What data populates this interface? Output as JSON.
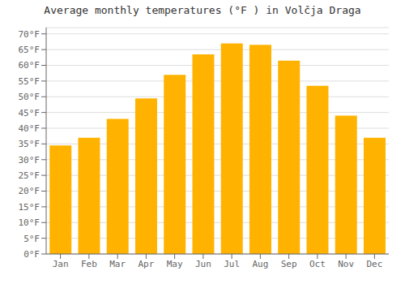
{
  "chart_data": {
    "type": "bar",
    "title": "Average monthly temperatures (°F ) in Volčja Draga",
    "categories": [
      "Jan",
      "Feb",
      "Mar",
      "Apr",
      "May",
      "Jun",
      "Jul",
      "Aug",
      "Sep",
      "Oct",
      "Nov",
      "Dec"
    ],
    "values": [
      34.5,
      37.0,
      43.0,
      49.5,
      57.0,
      63.5,
      67.0,
      66.5,
      61.5,
      53.5,
      44.0,
      37.0
    ],
    "color": "#FFB300",
    "ylim": [
      0,
      72
    ],
    "yticks": [
      {
        "value": 0,
        "label": "0°F"
      },
      {
        "value": 5,
        "label": "5°F"
      },
      {
        "value": 10,
        "label": "10°F"
      },
      {
        "value": 15,
        "label": "15°F"
      },
      {
        "value": 20,
        "label": "20°F"
      },
      {
        "value": 25,
        "label": "25°F"
      },
      {
        "value": 30,
        "label": "30°F"
      },
      {
        "value": 35,
        "label": "35°F"
      },
      {
        "value": 40,
        "label": "40°F"
      },
      {
        "value": 45,
        "label": "45°F"
      },
      {
        "value": 50,
        "label": "50°F"
      },
      {
        "value": 55,
        "label": "55°F"
      },
      {
        "value": 60,
        "label": "60°F"
      },
      {
        "value": 65,
        "label": "65°F"
      },
      {
        "value": 70,
        "label": "70°F"
      }
    ],
    "grid": true
  }
}
